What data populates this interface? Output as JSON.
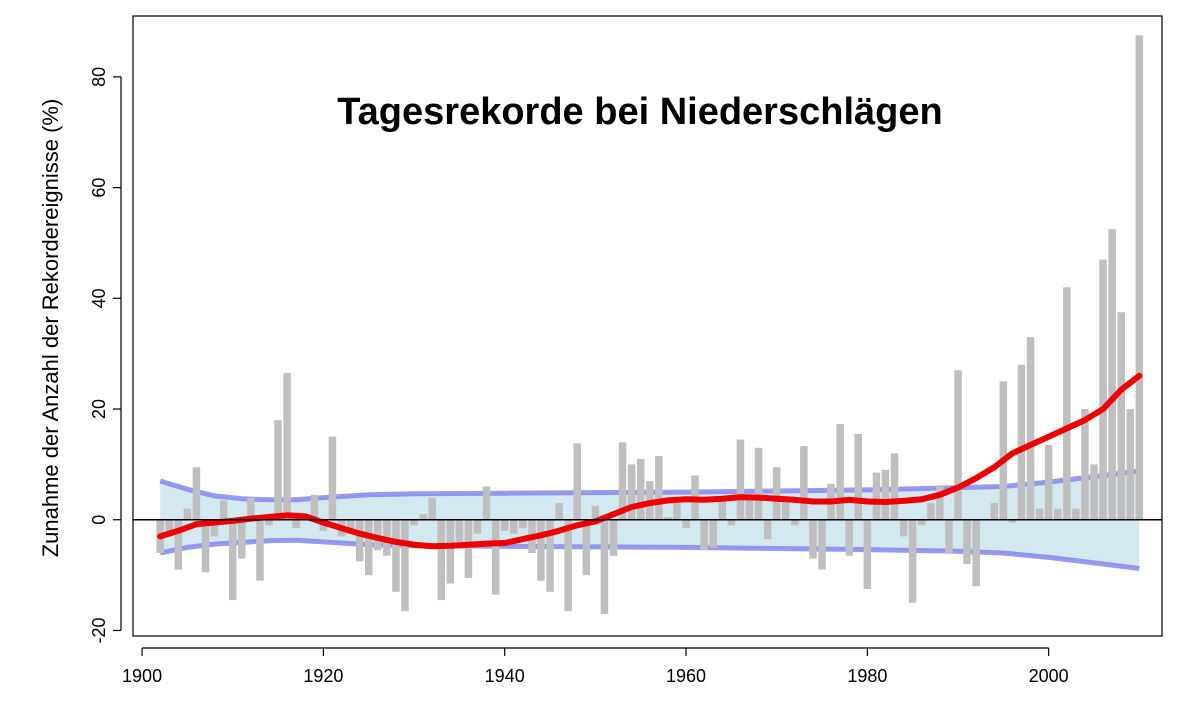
{
  "chart_data": {
    "type": "bar",
    "title": "Tagesrekorde bei Niederschlägen",
    "xlabel": "",
    "ylabel": "Zunahme der Anzahl der Rekordereignisse (%)",
    "xlim": [
      1899,
      2012.5
    ],
    "ylim": [
      -21,
      91
    ],
    "x_ticks": [
      1900,
      1920,
      1940,
      1960,
      1980,
      2000
    ],
    "y_ticks": [
      -20,
      0,
      20,
      40,
      60,
      80
    ],
    "grid": false,
    "legend": "none",
    "colors": {
      "bars": "#bfbfbf",
      "band_fill": "#d4e8f0",
      "band_edge": "#8080ee",
      "trend": "#ee0000",
      "zero_line": "#000000"
    },
    "bars": {
      "x": [
        1902,
        1903,
        1904,
        1905,
        1906,
        1907,
        1908,
        1909,
        1910,
        1911,
        1912,
        1913,
        1914,
        1915,
        1916,
        1917,
        1918,
        1919,
        1920,
        1921,
        1922,
        1923,
        1924,
        1925,
        1926,
        1927,
        1928,
        1929,
        1930,
        1931,
        1932,
        1933,
        1934,
        1935,
        1936,
        1937,
        1938,
        1939,
        1940,
        1941,
        1942,
        1943,
        1944,
        1945,
        1946,
        1947,
        1948,
        1949,
        1950,
        1951,
        1952,
        1953,
        1954,
        1955,
        1956,
        1957,
        1958,
        1959,
        1960,
        1961,
        1962,
        1963,
        1964,
        1965,
        1966,
        1967,
        1968,
        1969,
        1970,
        1971,
        1972,
        1973,
        1974,
        1975,
        1976,
        1977,
        1978,
        1979,
        1980,
        1981,
        1982,
        1983,
        1984,
        1985,
        1986,
        1987,
        1988,
        1989,
        1990,
        1991,
        1992,
        1993,
        1994,
        1995,
        1996,
        1997,
        1998,
        1999,
        2000,
        2001,
        2002,
        2003,
        2004,
        2005,
        2006,
        2007,
        2008,
        2009,
        2010
      ],
      "values": [
        -6,
        -3,
        -9,
        2,
        9.5,
        -9.5,
        -3,
        3.5,
        -14.5,
        -7,
        4,
        -11,
        -1,
        18,
        26.5,
        -1.5,
        1,
        4.5,
        -2,
        15,
        -3,
        -2,
        -7.5,
        -10,
        -5.5,
        -6.5,
        -13,
        -16.5,
        -1,
        1,
        4,
        -14.5,
        -11.5,
        -4,
        -10.5,
        -2.5,
        6,
        -13.5,
        -2,
        -2.5,
        -1.5,
        -6,
        -11,
        -13,
        3,
        -16.5,
        13.8,
        -10,
        2.5,
        -17,
        -6.5,
        14,
        10,
        11,
        7,
        11.5,
        0.5,
        3,
        -1.5,
        8,
        -5.5,
        -5,
        4,
        -1,
        14.5,
        4,
        13,
        -3.5,
        9.5,
        3.5,
        -1,
        13.3,
        -7,
        -9,
        6.5,
        17.3,
        -6.5,
        15.5,
        -12.5,
        8.5,
        9,
        12,
        -3,
        -15,
        -1,
        3,
        6,
        -6,
        27,
        -8,
        -12,
        0,
        3,
        25,
        -0.5,
        28,
        33,
        2,
        13.5,
        2,
        42,
        2,
        20,
        10,
        47,
        52.5,
        37.5,
        20,
        87.5
      ]
    },
    "trend": {
      "x": [
        1902,
        1904,
        1906,
        1908,
        1910,
        1912,
        1914,
        1916,
        1918,
        1920,
        1922,
        1924,
        1926,
        1928,
        1930,
        1932,
        1934,
        1936,
        1938,
        1940,
        1942,
        1944,
        1946,
        1948,
        1950,
        1952,
        1954,
        1956,
        1958,
        1960,
        1962,
        1964,
        1966,
        1968,
        1970,
        1972,
        1974,
        1976,
        1978,
        1980,
        1982,
        1984,
        1986,
        1988,
        1990,
        1992,
        1994,
        1996,
        1998,
        2000,
        2002,
        2004,
        2006,
        2008,
        2010
      ],
      "values": [
        -3,
        -2,
        -0.8,
        -0.5,
        -0.2,
        0.2,
        0.5,
        0.8,
        0.6,
        -0.5,
        -1.5,
        -2.5,
        -3.3,
        -4,
        -4.5,
        -4.8,
        -4.7,
        -4.5,
        -4.3,
        -4.2,
        -3.5,
        -2.8,
        -2,
        -1,
        -0.3,
        1,
        2.3,
        3,
        3.5,
        3.7,
        3.6,
        3.8,
        4.1,
        4,
        3.8,
        3.6,
        3.3,
        3.3,
        3.6,
        3.3,
        3.2,
        3.4,
        3.7,
        4.5,
        5.8,
        7.5,
        9.5,
        12,
        13.5,
        15,
        16.5,
        18,
        20,
        23.5,
        26
      ]
    },
    "band": {
      "x": [
        1902,
        1905,
        1908,
        1911,
        1914,
        1917,
        1920,
        1925,
        1930,
        1940,
        1950,
        1960,
        1970,
        1980,
        1990,
        1995,
        2000,
        2005,
        2010
      ],
      "upper": [
        7,
        5.5,
        4.3,
        3.8,
        3.6,
        3.6,
        4,
        4.5,
        4.7,
        4.8,
        4.9,
        5,
        5.2,
        5.4,
        5.8,
        6,
        6.8,
        7.8,
        8.8
      ],
      "lower": [
        -6,
        -5,
        -4.4,
        -4.1,
        -3.8,
        -3.7,
        -4,
        -4.5,
        -4.7,
        -4.8,
        -4.9,
        -5,
        -5.2,
        -5.4,
        -5.7,
        -6,
        -6.8,
        -7.8,
        -8.8
      ]
    }
  }
}
